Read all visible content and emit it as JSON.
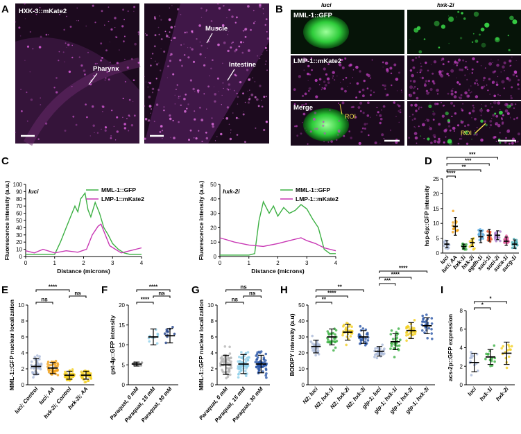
{
  "micrographs": {
    "panel_a": {
      "letter": "A",
      "title": "HXK-3::mKate2",
      "labels": [
        "Pharynx",
        "Muscle",
        "Intestine"
      ]
    },
    "panel_b": {
      "letter": "B",
      "column_headers": [
        "luci",
        "hxk-2i"
      ],
      "row_labels": [
        "MML-1::GFP",
        "LMP-1::mKate2",
        "Merge"
      ],
      "roi_label": "ROI"
    }
  },
  "colors": {
    "green": "#3cb043",
    "magenta": "#c837b4",
    "orange": "#f2a31b",
    "yellow": "#f4cf22",
    "gray_blue": "#aab9d8",
    "sky": "#57a9de",
    "navy": "#1f3f86"
  },
  "chart_data": [
    {
      "panel": "C",
      "type": "line",
      "inset_label": "luci",
      "xlabel": "Distance (microns)",
      "ylabel": "Fluorescence intensity (a.u.)",
      "xlim": [
        0,
        4
      ],
      "ylim": [
        0,
        100
      ],
      "xticks": [
        0,
        1,
        2,
        3,
        4
      ],
      "yticks": [
        0,
        10,
        20,
        30,
        40,
        50,
        60,
        70,
        80,
        90,
        100
      ],
      "legend": "top-right",
      "series": [
        {
          "name": "MML-1::GFP",
          "color": "#3cb043",
          "x": [
            0,
            0.5,
            1.0,
            1.2,
            1.4,
            1.55,
            1.7,
            1.8,
            1.9,
            2.05,
            2.15,
            2.25,
            2.4,
            2.55,
            2.7,
            2.85,
            3.0,
            3.2,
            3.4,
            3.6,
            3.8,
            4.0
          ],
          "y": [
            3,
            3,
            3,
            20,
            40,
            55,
            70,
            62,
            80,
            88,
            65,
            55,
            75,
            60,
            40,
            30,
            18,
            10,
            5,
            3,
            3,
            3
          ]
        },
        {
          "name": "LMP-1::mKate2",
          "color": "#c837b4",
          "x": [
            0,
            0.3,
            0.6,
            1.0,
            1.4,
            1.8,
            2.1,
            2.3,
            2.5,
            2.6,
            2.75,
            2.9,
            3.1,
            3.3,
            3.6,
            4.0
          ],
          "y": [
            8,
            5,
            10,
            5,
            8,
            6,
            10,
            30,
            42,
            45,
            30,
            15,
            10,
            5,
            8,
            12
          ]
        }
      ]
    },
    {
      "panel": "C",
      "type": "line",
      "inset_label": "hxk-2i",
      "xlabel": "Distance (microns)",
      "ylabel": "Fluorescence intensity (a.u.)",
      "xlim": [
        0,
        4
      ],
      "ylim": [
        0,
        50
      ],
      "xticks": [
        0,
        1,
        2,
        3,
        4
      ],
      "yticks": [
        0,
        10,
        20,
        30,
        40,
        50
      ],
      "legend": "top-right",
      "series": [
        {
          "name": "MML-1::GFP",
          "color": "#3cb043",
          "x": [
            0,
            0.5,
            1.0,
            1.2,
            1.35,
            1.5,
            1.7,
            1.85,
            2.0,
            2.2,
            2.4,
            2.6,
            2.8,
            3.0,
            3.2,
            3.4,
            3.6,
            3.8,
            4.0
          ],
          "y": [
            1,
            1,
            1,
            2,
            25,
            38,
            30,
            35,
            28,
            34,
            30,
            32,
            36,
            33,
            26,
            20,
            5,
            2,
            2
          ]
        },
        {
          "name": "LMP-1::mKate2",
          "color": "#c837b4",
          "x": [
            0,
            0.5,
            1.0,
            1.5,
            2.0,
            2.4,
            2.8,
            3.0,
            3.3,
            3.6,
            4.0
          ],
          "y": [
            13,
            10,
            8,
            7,
            9,
            11,
            13,
            11,
            9,
            6,
            4
          ]
        }
      ]
    },
    {
      "panel": "D",
      "type": "scatter",
      "ylabel": "hsp-6p::GFP intensity",
      "ylim": [
        0,
        25
      ],
      "yticks": [
        0,
        5,
        10,
        15,
        20,
        25
      ],
      "categories": [
        "luci",
        "luci; AA",
        "hxk-1i",
        "hxk-2i",
        "ogdh-1i",
        "suci-1i",
        "suci-2i",
        "suca-1i",
        "sucg-1i"
      ],
      "colors": [
        "#aab9d8",
        "#f2a31b",
        "#3cb043",
        "#f4cf22",
        "#57a9de",
        "#e8502b",
        "#a77ac9",
        "#e0569a",
        "#4fb0b6"
      ],
      "means": [
        3,
        9,
        2.2,
        3.5,
        5.5,
        6.0,
        6.0,
        4.0,
        3.0
      ],
      "sds": [
        1.2,
        3.0,
        0.8,
        1.3,
        2.0,
        2.0,
        1.5,
        1.4,
        1.4
      ],
      "comparisons": [
        {
          "from": 0,
          "to": 1,
          "label": "****"
        },
        {
          "from": 0,
          "to": 4,
          "label": "**"
        },
        {
          "from": 0,
          "to": 5,
          "label": "***"
        },
        {
          "from": 0,
          "to": 6,
          "label": "***"
        }
      ]
    },
    {
      "panel": "E",
      "type": "scatter",
      "ylabel": "MML-1::GFP nuclear localization",
      "ylim": [
        0,
        10
      ],
      "yticks": [
        0,
        2,
        4,
        6,
        8,
        10
      ],
      "categories": [
        "luci; Control",
        "luci; AA",
        "hxk-2i; Control",
        "hxk-2i; AA"
      ],
      "colors": [
        "#aab9d8",
        "#f2a31b",
        "#f4cf22",
        "#f4cf22"
      ],
      "means": [
        2.3,
        2.1,
        1.2,
        1.2
      ],
      "sds": [
        1.0,
        0.7,
        0.5,
        0.5
      ],
      "comparisons": [
        {
          "from": 0,
          "to": 1,
          "label": "ns"
        },
        {
          "from": 2,
          "to": 3,
          "label": "ns"
        },
        {
          "from": 0,
          "to": 2,
          "label": "****"
        }
      ]
    },
    {
      "panel": "F",
      "type": "scatter",
      "ylabel": "gst-4p::GFP intensity",
      "ylim": [
        0,
        20
      ],
      "yticks": [
        0,
        5,
        10,
        15,
        20
      ],
      "categories": [
        "Paraquat, 0 mM",
        "Paraquat, 15 mM",
        "Paraquat, 30 mM"
      ],
      "colors": [
        "#8c8c8c",
        "#8fd0ea",
        "#1f3f86"
      ],
      "means": [
        5.2,
        12,
        12.3
      ],
      "sds": [
        0.5,
        2.0,
        1.8
      ],
      "comparisons": [
        {
          "from": 0,
          "to": 1,
          "label": "****"
        },
        {
          "from": 1,
          "to": 2,
          "label": "ns"
        },
        {
          "from": 0,
          "to": 2,
          "label": "****"
        }
      ]
    },
    {
      "panel": "G",
      "type": "scatter",
      "ylabel": "MML-1::GFP nuclear localization",
      "ylim": [
        0,
        10
      ],
      "yticks": [
        0,
        2,
        4,
        6,
        8,
        10
      ],
      "categories": [
        "Paraquat, 0 mM",
        "Paraquat, 15 mM",
        "Paraquat, 30 mM"
      ],
      "colors": [
        "#b5b5b5",
        "#8fd0ea",
        "#2b56a8"
      ],
      "means": [
        2.5,
        2.6,
        2.6
      ],
      "sds": [
        1.2,
        1.2,
        1.1
      ],
      "comparisons": [
        {
          "from": 0,
          "to": 1,
          "label": "ns"
        },
        {
          "from": 1,
          "to": 2,
          "label": "ns"
        },
        {
          "from": 0,
          "to": 2,
          "label": "ns"
        }
      ]
    },
    {
      "panel": "H",
      "type": "scatter",
      "ylabel": "BODIPY intensity (a.u)",
      "ylim": [
        0,
        50
      ],
      "yticks": [
        0,
        10,
        20,
        30,
        40,
        50
      ],
      "categories": [
        "N2; luci",
        "N2; hxk-1i",
        "N2; hxk-2i",
        "N2; hxk-3i",
        "glp-1; luci",
        "glp-1; hxk-1i",
        "glp-1; hxk-2i",
        "glp-1; hxk-3i"
      ],
      "colors": [
        "#aab9d8",
        "#3cb043",
        "#f4cf22",
        "#2b56a8",
        "#aab9d8",
        "#3cb043",
        "#f4cf22",
        "#2b56a8"
      ],
      "means": [
        24,
        30,
        33,
        30,
        21,
        27,
        34,
        37
      ],
      "sds": [
        4,
        5,
        5,
        4,
        3,
        5,
        5,
        5
      ],
      "comparisons": [
        {
          "from": 0,
          "to": 1,
          "label": "**"
        },
        {
          "from": 0,
          "to": 2,
          "label": "****"
        },
        {
          "from": 0,
          "to": 3,
          "label": "**"
        },
        {
          "from": 4,
          "to": 5,
          "label": "***"
        },
        {
          "from": 4,
          "to": 6,
          "label": "****"
        },
        {
          "from": 4,
          "to": 7,
          "label": "****"
        }
      ]
    },
    {
      "panel": "I",
      "type": "scatter",
      "ylabel": "acs-2p::GFP expression",
      "ylim": [
        0,
        8
      ],
      "yticks": [
        0,
        2,
        4,
        6,
        8
      ],
      "categories": [
        "luci",
        "hxk-1i",
        "hxk-2i"
      ],
      "colors": [
        "#aab9d8",
        "#3cb043",
        "#f4cf22"
      ],
      "means": [
        2.4,
        3.0,
        3.4
      ],
      "sds": [
        1.0,
        0.8,
        1.2
      ],
      "comparisons": [
        {
          "from": 0,
          "to": 1,
          "label": "*"
        },
        {
          "from": 0,
          "to": 2,
          "label": "*"
        }
      ]
    }
  ]
}
